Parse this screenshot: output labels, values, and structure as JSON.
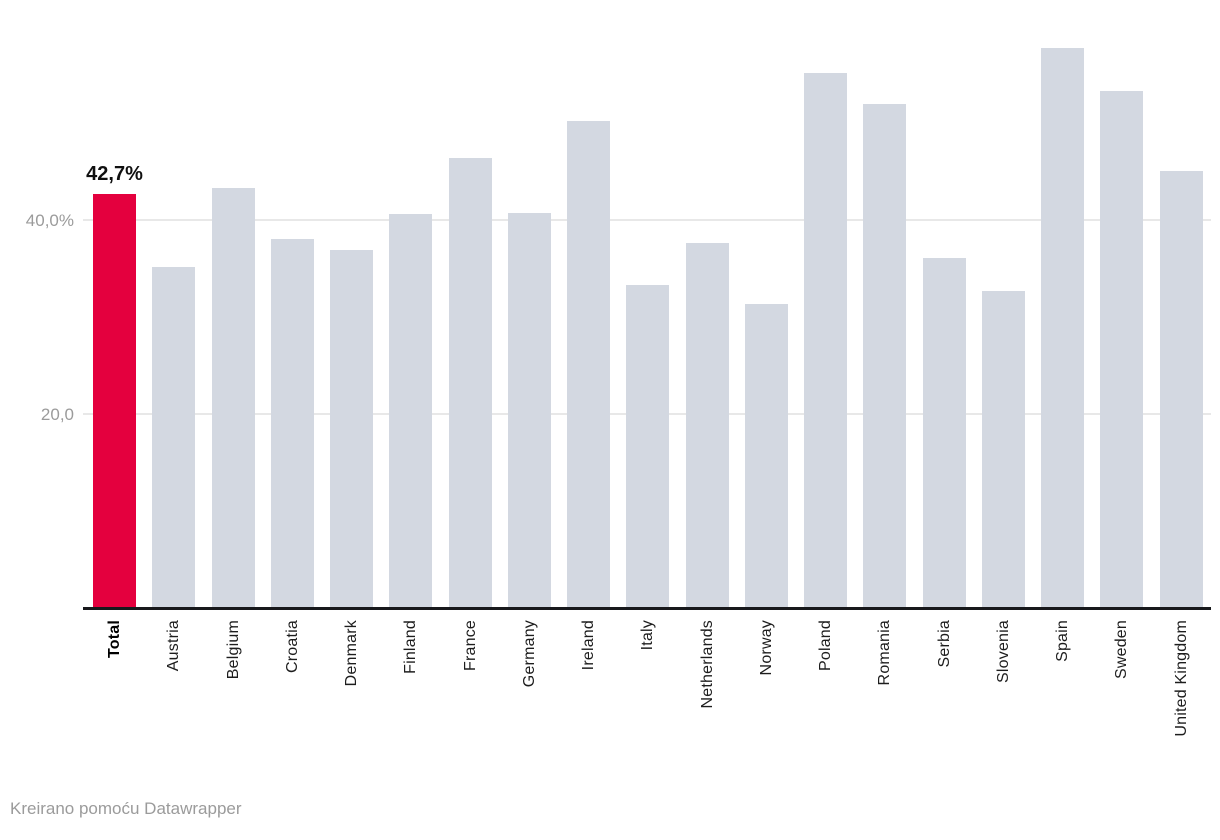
{
  "chart_data": {
    "type": "bar",
    "title": "",
    "xlabel": "",
    "ylabel": "",
    "categories": [
      "Total",
      "Austria",
      "Belgium",
      "Croatia",
      "Denmark",
      "Finland",
      "France",
      "Germany",
      "Ireland",
      "Italy",
      "Netherlands",
      "Norway",
      "Poland",
      "Romania",
      "Serbia",
      "Slovenia",
      "Spain",
      "Sweden",
      "United Kingdom"
    ],
    "values": [
      42.7,
      35.2,
      43.3,
      38.1,
      36.9,
      40.7,
      46.4,
      40.8,
      50.3,
      33.3,
      37.7,
      31.4,
      55.2,
      52.0,
      36.1,
      32.7,
      57.8,
      53.4,
      45.1
    ],
    "unit": "%",
    "ylim": [
      0,
      60
    ],
    "grid": true,
    "y_ticks": [
      {
        "value": 20,
        "label": "20,0"
      },
      {
        "value": 40,
        "label": "40,0%"
      }
    ],
    "highlight": {
      "category": "Total",
      "index": 0,
      "data_label": "42,7%"
    },
    "colors": {
      "bar": "#d3d8e1",
      "highlight_bar": "#e4003e",
      "gridline": "#e8e8e8",
      "axis_line": "#18191c",
      "tick_label": "#9b9b9b",
      "category_label": "#1d1d1d"
    },
    "legend": null
  },
  "footer": {
    "credit": "Kreirano pomoću Datawrapper"
  }
}
